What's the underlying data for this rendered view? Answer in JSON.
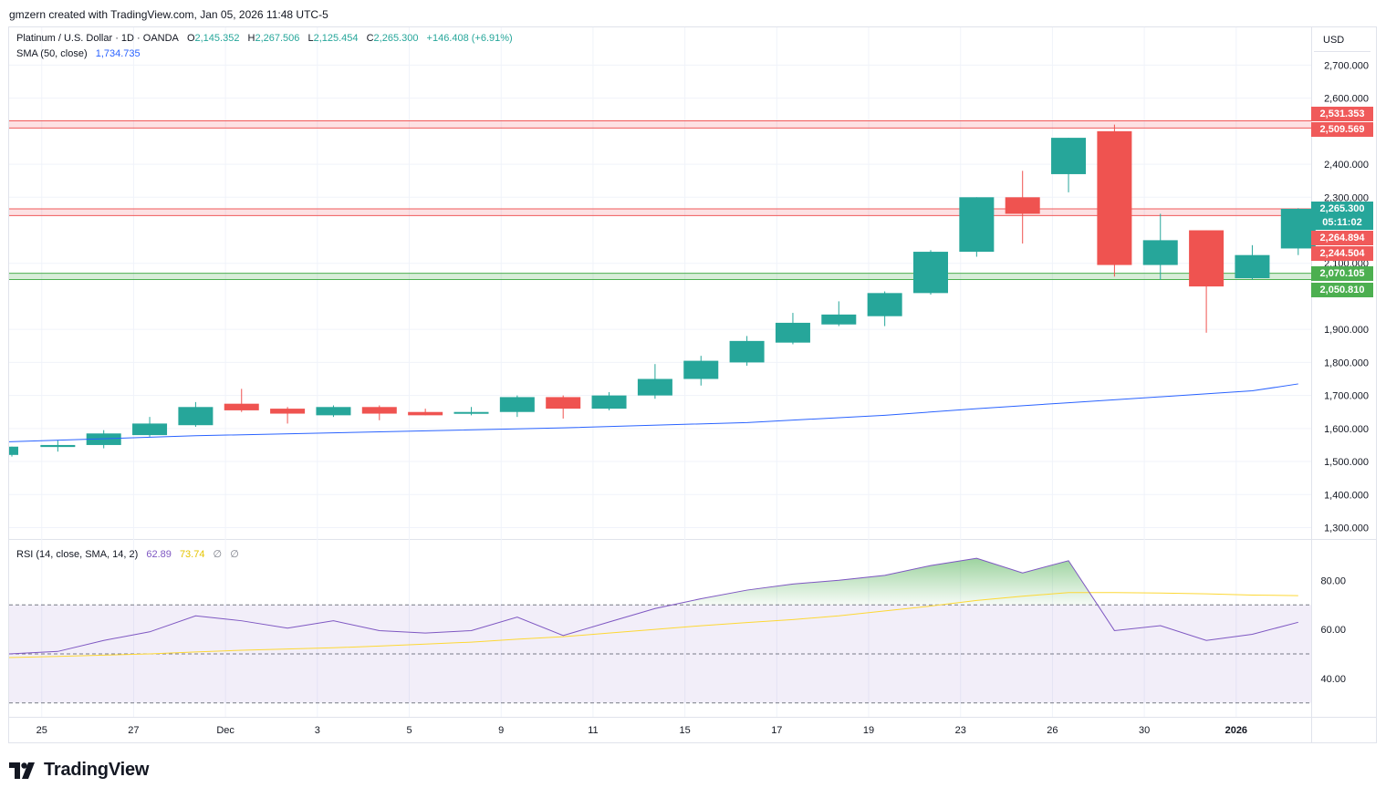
{
  "header": {
    "credit": "gmzern created with TradingView.com, Jan 05, 2026 11:48 UTC-5"
  },
  "legend": {
    "symbol": "Platinum / U.S. Dollar · 1D · OANDA",
    "o_label": "O",
    "o_value": "2,145.352",
    "h_label": "H",
    "h_value": "2,267.506",
    "l_label": "L",
    "l_value": "2,125.454",
    "c_label": "C",
    "c_value": "2,265.300",
    "change": "+146.408 (+6.91%)",
    "sma_label": "SMA (50, close)",
    "sma_value": "1,734.735",
    "rsi_label": "RSI (14, close, SMA, 14, 2)",
    "rsi_value": "62.89",
    "rsi_sma_value": "73.74",
    "rsi_extra1": "∅",
    "rsi_extra2": "∅"
  },
  "currency": "USD",
  "price_tags": [
    {
      "text": "2,531.353",
      "color": "#f05a5a"
    },
    {
      "text": "2,509.569",
      "color": "#f05a5a"
    },
    {
      "text": "2,265.300",
      "color": "#26a69a"
    },
    {
      "text": "05:11:02",
      "color": "#26a69a"
    },
    {
      "text": "2,264.894",
      "color": "#f05a5a"
    },
    {
      "text": "2,244.504",
      "color": "#f05a5a"
    },
    {
      "text": "2,070.105",
      "color": "#4caf50"
    },
    {
      "text": "2,050.810",
      "color": "#4caf50"
    }
  ],
  "brand": {
    "name": "TradingView"
  },
  "colors": {
    "up": "#26a69a",
    "down": "#ef5350",
    "sma": "#2962ff",
    "rsi": "#7e57c2",
    "rsi_sma": "#fdd835",
    "resistance": "#f05a5a",
    "support": "#4caf50"
  },
  "chart_data": [
    {
      "type": "candlestick",
      "title": "Platinum / U.S. Dollar · 1D · OANDA",
      "ylim": [
        1250,
        2790
      ],
      "y_ticks": [
        1300,
        1400,
        1500,
        1600,
        1700,
        1800,
        1900,
        2100,
        2300,
        2400,
        2600,
        2700
      ],
      "y_tick_labels": [
        "1,300.000",
        "1,400.000",
        "1,500.000",
        "1,600.000",
        "1,700.000",
        "1,800.000",
        "1,900.000",
        "2,100.000",
        "2,300.000",
        "2,400.000",
        "2,600.000",
        "2,700.000"
      ],
      "x_tick_labels": [
        "25",
        "27",
        "Dec",
        "3",
        "5",
        "9",
        "11",
        "15",
        "17",
        "19",
        "23",
        "26",
        "30",
        "2026"
      ],
      "candles": [
        {
          "o": 1520,
          "h": 1545,
          "l": 1515,
          "c": 1545
        },
        {
          "o": 1544,
          "h": 1565,
          "l": 1530,
          "c": 1550
        },
        {
          "o": 1550,
          "h": 1595,
          "l": 1540,
          "c": 1585
        },
        {
          "o": 1580,
          "h": 1635,
          "l": 1575,
          "c": 1615
        },
        {
          "o": 1610,
          "h": 1680,
          "l": 1605,
          "c": 1665
        },
        {
          "o": 1675,
          "h": 1720,
          "l": 1650,
          "c": 1655
        },
        {
          "o": 1660,
          "h": 1665,
          "l": 1615,
          "c": 1645
        },
        {
          "o": 1640,
          "h": 1670,
          "l": 1635,
          "c": 1665
        },
        {
          "o": 1665,
          "h": 1670,
          "l": 1625,
          "c": 1645
        },
        {
          "o": 1650,
          "h": 1660,
          "l": 1640,
          "c": 1640
        },
        {
          "o": 1645,
          "h": 1665,
          "l": 1640,
          "c": 1650
        },
        {
          "o": 1650,
          "h": 1700,
          "l": 1635,
          "c": 1695
        },
        {
          "o": 1695,
          "h": 1700,
          "l": 1630,
          "c": 1660
        },
        {
          "o": 1660,
          "h": 1710,
          "l": 1655,
          "c": 1700
        },
        {
          "o": 1700,
          "h": 1795,
          "l": 1690,
          "c": 1750
        },
        {
          "o": 1750,
          "h": 1820,
          "l": 1730,
          "c": 1805
        },
        {
          "o": 1800,
          "h": 1880,
          "l": 1790,
          "c": 1865
        },
        {
          "o": 1860,
          "h": 1950,
          "l": 1855,
          "c": 1920
        },
        {
          "o": 1915,
          "h": 1985,
          "l": 1910,
          "c": 1945
        },
        {
          "o": 1940,
          "h": 2015,
          "l": 1910,
          "c": 2010
        },
        {
          "o": 2010,
          "h": 2140,
          "l": 2005,
          "c": 2135
        },
        {
          "o": 2135,
          "h": 2300,
          "l": 2120,
          "c": 2300
        },
        {
          "o": 2300,
          "h": 2380,
          "l": 2160,
          "c": 2250
        },
        {
          "o": 2370,
          "h": 2480,
          "l": 2315,
          "c": 2480
        },
        {
          "o": 2500,
          "h": 2520,
          "l": 2060,
          "c": 2095
        },
        {
          "o": 2095,
          "h": 2250,
          "l": 2050,
          "c": 2170
        },
        {
          "o": 2200,
          "h": 2200,
          "l": 1890,
          "c": 2030
        },
        {
          "o": 2055,
          "h": 2155,
          "l": 2050,
          "c": 2125
        },
        {
          "o": 2145,
          "h": 2267,
          "l": 2125,
          "c": 2265
        }
      ],
      "sma_50": [
        {
          "i": -0.2,
          "v": 1560
        },
        {
          "i": 4,
          "v": 1578
        },
        {
          "i": 8,
          "v": 1590
        },
        {
          "i": 12,
          "v": 1602
        },
        {
          "i": 16,
          "v": 1618
        },
        {
          "i": 19,
          "v": 1640
        },
        {
          "i": 21,
          "v": 1660
        },
        {
          "i": 23,
          "v": 1678
        },
        {
          "i": 25,
          "v": 1696
        },
        {
          "i": 27,
          "v": 1714
        },
        {
          "i": 28,
          "v": 1735
        }
      ],
      "bands": [
        {
          "from": 2509.569,
          "to": 2531.353,
          "kind": "resistance"
        },
        {
          "from": 2244.504,
          "to": 2264.894,
          "kind": "resistance"
        },
        {
          "from": 2050.81,
          "to": 2070.105,
          "kind": "support"
        }
      ]
    },
    {
      "type": "line",
      "title": "RSI (14, close, SMA, 14, 2)",
      "ylim": [
        25,
        95
      ],
      "y_ticks": [
        40,
        60,
        80
      ],
      "y_tick_labels": [
        "40.00",
        "60.00",
        "80.00"
      ],
      "levels": [
        30,
        50,
        70
      ],
      "series": [
        {
          "name": "RSI",
          "values": [
            50,
            51,
            55.5,
            59,
            65.5,
            63.5,
            60.5,
            63.5,
            59.5,
            58.5,
            59.5,
            65,
            57.5,
            63,
            68.5,
            72.5,
            76,
            78.5,
            80,
            82,
            86,
            89,
            83,
            88,
            59.5,
            61.5,
            55.5,
            58,
            62.9
          ]
        },
        {
          "name": "RSI SMA",
          "values": [
            48.5,
            49,
            49.5,
            50,
            50.8,
            51.5,
            52,
            52.5,
            53.2,
            54,
            54.8,
            56,
            57,
            58.5,
            60,
            61.5,
            62.8,
            64,
            65.5,
            67.5,
            69.5,
            71.8,
            73.5,
            75,
            75,
            74.8,
            74.5,
            74,
            73.74
          ]
        }
      ]
    }
  ]
}
